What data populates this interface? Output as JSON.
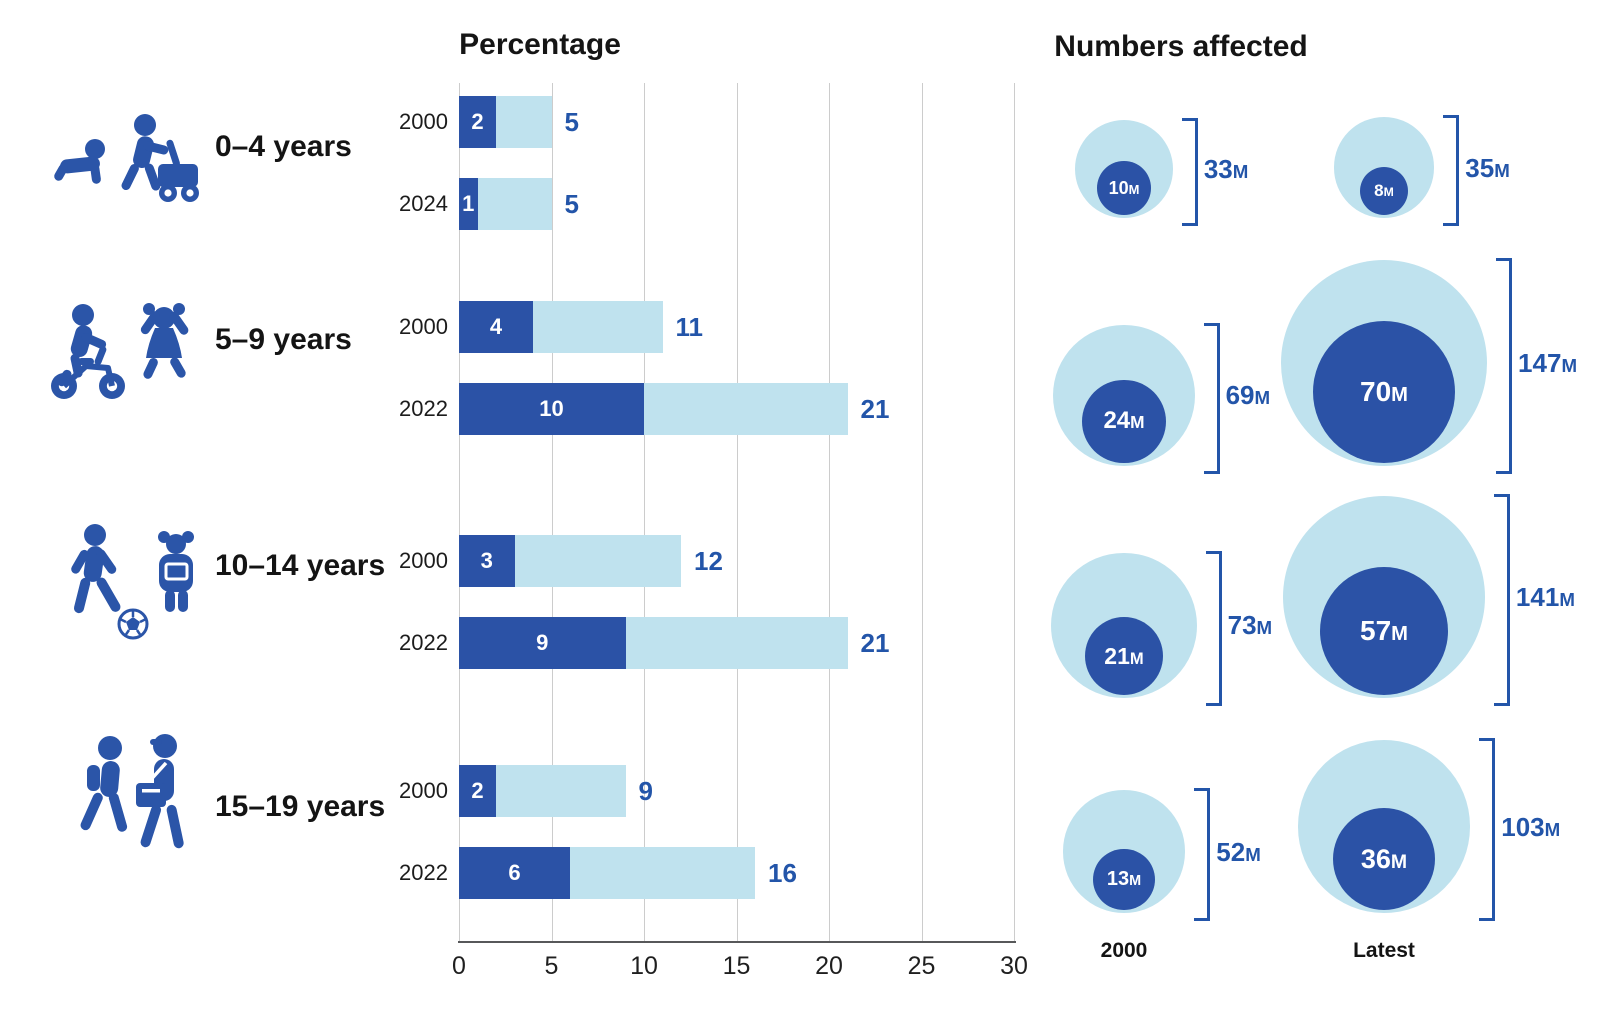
{
  "titles": {
    "percentage": "Percentage",
    "numbers_affected": "Numbers affected"
  },
  "colors": {
    "dark_blue": "#2b52a6",
    "light_blue": "#bfe2ee",
    "label_blue": "#2355a9",
    "icon_blue": "#2b55a8",
    "gridline": "#cccccc",
    "axis_line": "#57585a",
    "text": "#1a1a1a"
  },
  "chart_data": {
    "type": "bar",
    "title": "Percentage",
    "right_panel_title": "Numbers affected",
    "xlim": [
      0,
      30
    ],
    "x_ticks": [
      0,
      5,
      10,
      15,
      20,
      25,
      30
    ],
    "grid": true,
    "unit": "M",
    "bubble_column_labels": [
      "2000",
      "Latest"
    ],
    "groups": [
      {
        "label": "0–4 years",
        "icon": "crawling-baby-and-toddler-with-walker",
        "bars": [
          {
            "year": "2000",
            "dark": 2,
            "total": 5
          },
          {
            "year": "2024",
            "dark": 1,
            "total": 5
          }
        ],
        "bubbles": [
          {
            "column": "2000",
            "inner": 10,
            "outer": 33
          },
          {
            "column": "Latest",
            "inner": 8,
            "outer": 35
          }
        ]
      },
      {
        "label": "5–9 years",
        "icon": "child-on-bike-and-jumping-girl",
        "bars": [
          {
            "year": "2000",
            "dark": 4,
            "total": 11
          },
          {
            "year": "2022",
            "dark": 10,
            "total": 21
          }
        ],
        "bubbles": [
          {
            "column": "2000",
            "inner": 24,
            "outer": 69
          },
          {
            "column": "Latest",
            "inner": 70,
            "outer": 147
          }
        ]
      },
      {
        "label": "10–14 years",
        "icon": "boy-kicking-football-and-girl-with-book",
        "bars": [
          {
            "year": "2000",
            "dark": 3,
            "total": 12
          },
          {
            "year": "2022",
            "dark": 9,
            "total": 21
          }
        ],
        "bubbles": [
          {
            "column": "2000",
            "inner": 21,
            "outer": 73
          },
          {
            "column": "Latest",
            "inner": 57,
            "outer": 141
          }
        ]
      },
      {
        "label": "15–19 years",
        "icon": "two-teens-walking-with-school-bags",
        "bars": [
          {
            "year": "2000",
            "dark": 2,
            "total": 9
          },
          {
            "year": "2022",
            "dark": 6,
            "total": 16
          }
        ],
        "bubbles": [
          {
            "column": "2000",
            "inner": 13,
            "outer": 52
          },
          {
            "column": "Latest",
            "inner": 36,
            "outer": 103
          }
        ]
      }
    ]
  }
}
